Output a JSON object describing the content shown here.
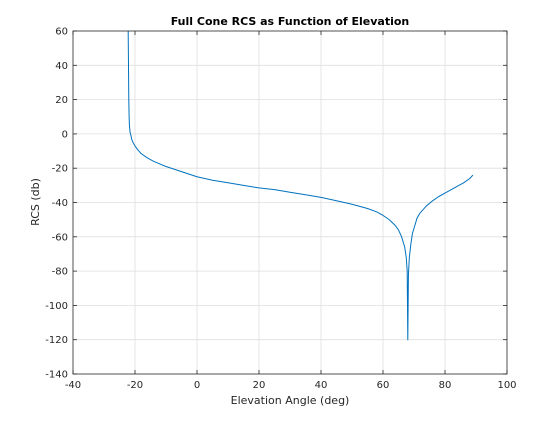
{
  "chart_data": {
    "type": "line",
    "title": "Full Cone RCS as Function of Elevation",
    "xlabel": "Elevation Angle (deg)",
    "ylabel": "RCS (db)",
    "xlim": [
      -40,
      100
    ],
    "ylim": [
      -140,
      60
    ],
    "xticks": [
      -40,
      -20,
      0,
      20,
      40,
      60,
      80,
      100
    ],
    "yticks": [
      -140,
      -120,
      -100,
      -80,
      -60,
      -40,
      -20,
      0,
      20,
      40,
      60
    ],
    "grid": true,
    "legend": "none",
    "line_color": "#0072BD",
    "series": [
      {
        "x": [
          -22.2,
          -22.0,
          -21.9,
          -21.8,
          -21.6,
          -21.3,
          -21.0,
          -20.5,
          -20,
          -19,
          -18,
          -16,
          -14,
          -12,
          -10,
          -5,
          0,
          5,
          10,
          15,
          20,
          25,
          30,
          35,
          40,
          45,
          50,
          55,
          58,
          60,
          62,
          64,
          65,
          66,
          67,
          67.5,
          67.8,
          68.0,
          68.2,
          68.5,
          69,
          69.5,
          70,
          71,
          72,
          74,
          76,
          78,
          80,
          82,
          84,
          86,
          88,
          89
        ],
        "y": [
          60,
          20,
          10,
          5,
          1,
          -1,
          -3.5,
          -5.5,
          -7,
          -9.5,
          -11.5,
          -14,
          -16,
          -17.5,
          -19,
          -22,
          -25,
          -27,
          -28.5,
          -30,
          -31.5,
          -32.5,
          -34,
          -35.5,
          -37,
          -39,
          -41,
          -43.5,
          -45.5,
          -47.5,
          -50,
          -53.5,
          -56,
          -60,
          -66,
          -72,
          -80,
          -120,
          -82,
          -72,
          -64,
          -58,
          -55,
          -49,
          -46,
          -42,
          -39,
          -36.5,
          -34.5,
          -32.5,
          -30.5,
          -28.5,
          -26,
          -24
        ]
      }
    ]
  }
}
